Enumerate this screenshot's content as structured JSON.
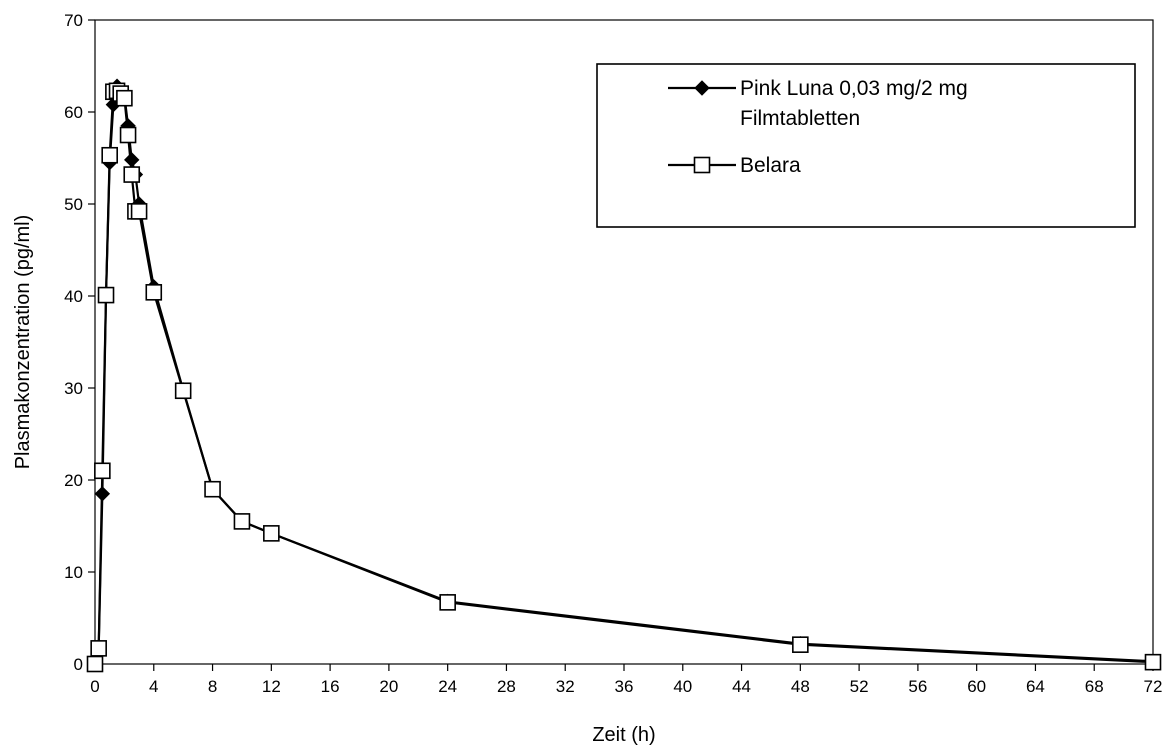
{
  "chart_data": {
    "type": "line",
    "xlabel": "Zeit (h)",
    "ylabel": "Plasmakonzentration (pg/ml)",
    "xlim": [
      0,
      72
    ],
    "ylim": [
      0,
      70
    ],
    "x_ticks": [
      0,
      4,
      8,
      12,
      16,
      20,
      24,
      28,
      32,
      36,
      40,
      44,
      48,
      52,
      56,
      60,
      64,
      68,
      72
    ],
    "x_tick_labels": [
      "0",
      "4",
      "8",
      "12",
      "16",
      "20",
      "24",
      "28",
      "32",
      "36",
      "40",
      "44",
      "48",
      "52",
      "56",
      "60",
      "64",
      "68",
      "72"
    ],
    "y_ticks": [
      0,
      10,
      20,
      30,
      40,
      50,
      60,
      70
    ],
    "y_tick_labels": [
      "0",
      "10",
      "20",
      "30",
      "40",
      "50",
      "60",
      "70"
    ],
    "grid": false,
    "legend_position": "top-right",
    "series": [
      {
        "name": "Pink Luna 0,03 mg/2 mg Filmtabletten",
        "name_lines": [
          "Pink Luna 0,03 mg/2 mg",
          "Filmtabletten"
        ],
        "marker": "diamond",
        "color": "#000000",
        "x": [
          0,
          0.25,
          0.5,
          0.75,
          1,
          1.25,
          1.5,
          1.75,
          2,
          2.25,
          2.5,
          2.75,
          3,
          4,
          6,
          8,
          10,
          12,
          24,
          48,
          72
        ],
        "y": [
          0,
          1.7,
          18.5,
          40.1,
          54.5,
          60.8,
          62.8,
          62.3,
          61.8,
          58.5,
          54.8,
          53.2,
          50.0,
          41.0,
          29.8,
          19.0,
          15.5,
          14.2,
          6.8,
          2.2,
          0.3
        ]
      },
      {
        "name": "Belara",
        "name_lines": [
          "Belara"
        ],
        "marker": "square",
        "color": "#000000",
        "x": [
          0,
          0.25,
          0.5,
          0.75,
          1,
          1.25,
          1.5,
          1.75,
          2,
          2.25,
          2.5,
          2.75,
          3,
          4,
          6,
          8,
          10,
          12,
          24,
          48,
          72
        ],
        "y": [
          0,
          1.7,
          21.0,
          40.1,
          55.3,
          62.2,
          62.3,
          62.0,
          61.5,
          57.5,
          53.2,
          49.2,
          49.2,
          40.4,
          29.7,
          19.0,
          15.5,
          14.2,
          6.7,
          2.1,
          0.2
        ]
      }
    ]
  }
}
